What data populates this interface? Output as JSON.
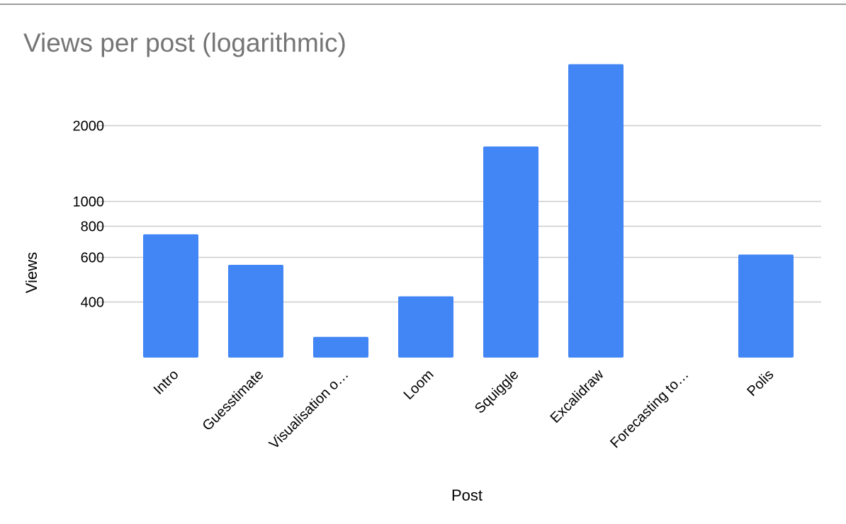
{
  "chart_data": {
    "type": "bar",
    "title": "Views per post (logarithmic)",
    "xlabel": "Post",
    "ylabel": "Views",
    "yscale": "log",
    "ylim": [
      240,
      3700
    ],
    "grid": true,
    "legend": "none",
    "bar_color": "#4285f4",
    "gridline_color": "#cccccc",
    "yticks": [
      {
        "value": 400,
        "label": "400"
      },
      {
        "value": 600,
        "label": "600"
      },
      {
        "value": 800,
        "label": "800"
      },
      {
        "value": 1000,
        "label": "1000"
      },
      {
        "value": 2000,
        "label": "2000"
      }
    ],
    "categories": [
      "Intro",
      "Guesstimate",
      "Visualisation o…",
      "Loom",
      "Squiggle",
      "Excalidraw",
      "Forecasting to…",
      "Polis"
    ],
    "values": [
      740,
      560,
      290,
      420,
      1650,
      3500,
      null,
      615
    ]
  }
}
